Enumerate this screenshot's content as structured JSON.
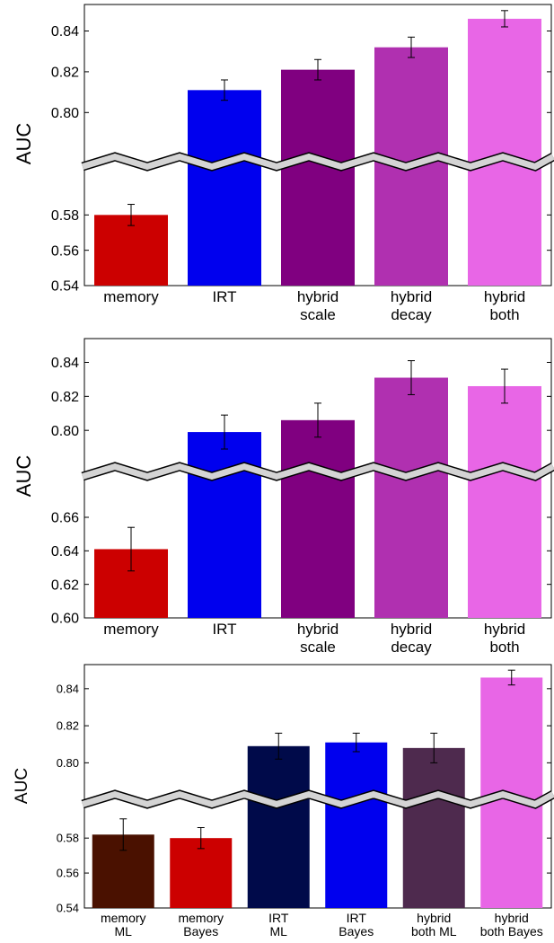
{
  "chart_data": [
    {
      "type": "bar",
      "axis_break": true,
      "ylabel": "AUC",
      "categories": [
        [
          "memory"
        ],
        [
          "IRT"
        ],
        [
          "hybrid",
          "scale"
        ],
        [
          "hybrid",
          "decay"
        ],
        [
          "hybrid",
          "both"
        ]
      ],
      "values": [
        0.58,
        0.811,
        0.821,
        0.832,
        0.846
      ],
      "errors": [
        0.006,
        0.005,
        0.005,
        0.005,
        0.004
      ],
      "colors": [
        "#cc0000",
        "#0000ee",
        "#800080",
        "#b030b0",
        "#e866e6"
      ],
      "lower_ticks": [
        "0.54",
        "0.56",
        "0.58"
      ],
      "upper_ticks": [
        "0.80",
        "0.82",
        "0.84"
      ],
      "lower_ylim": [
        0.54,
        0.6
      ],
      "upper_ylim": [
        0.79,
        0.853
      ]
    },
    {
      "type": "bar",
      "axis_break": true,
      "ylabel": "AUC",
      "categories": [
        [
          "memory"
        ],
        [
          "IRT"
        ],
        [
          "hybrid",
          "scale"
        ],
        [
          "hybrid",
          "decay"
        ],
        [
          "hybrid",
          "both"
        ]
      ],
      "values": [
        0.641,
        0.799,
        0.806,
        0.831,
        0.826
      ],
      "errors": [
        0.013,
        0.01,
        0.01,
        0.01,
        0.01
      ],
      "colors": [
        "#cc0000",
        "#0000ee",
        "#800080",
        "#b030b0",
        "#e866e6"
      ],
      "lower_ticks": [
        "0.60",
        "0.62",
        "0.64",
        "0.66"
      ],
      "upper_ticks": [
        "0.80",
        "0.82",
        "0.84"
      ],
      "lower_ylim": [
        0.6,
        0.675
      ],
      "upper_ylim": [
        0.789,
        0.854
      ]
    },
    {
      "type": "bar",
      "axis_break": true,
      "ylabel": "AUC",
      "categories": [
        [
          "memory",
          "ML"
        ],
        [
          "memory",
          "Bayes"
        ],
        [
          "IRT",
          "ML"
        ],
        [
          "IRT",
          "Bayes"
        ],
        [
          "hybrid",
          "both ML"
        ],
        [
          "hybrid",
          "both Bayes"
        ]
      ],
      "values": [
        0.582,
        0.58,
        0.809,
        0.811,
        0.808,
        0.846
      ],
      "errors": [
        0.009,
        0.006,
        0.007,
        0.005,
        0.008,
        0.004
      ],
      "colors": [
        "#4a1100",
        "#cc0000",
        "#000a4a",
        "#0000ee",
        "#4e2a4e",
        "#e866e6"
      ],
      "lower_ticks": [
        "0.54",
        "0.56",
        "0.58"
      ],
      "upper_ticks": [
        "0.80",
        "0.82",
        "0.84"
      ],
      "lower_ylim": [
        0.54,
        0.595
      ],
      "upper_ylim": [
        0.79,
        0.853
      ]
    }
  ]
}
